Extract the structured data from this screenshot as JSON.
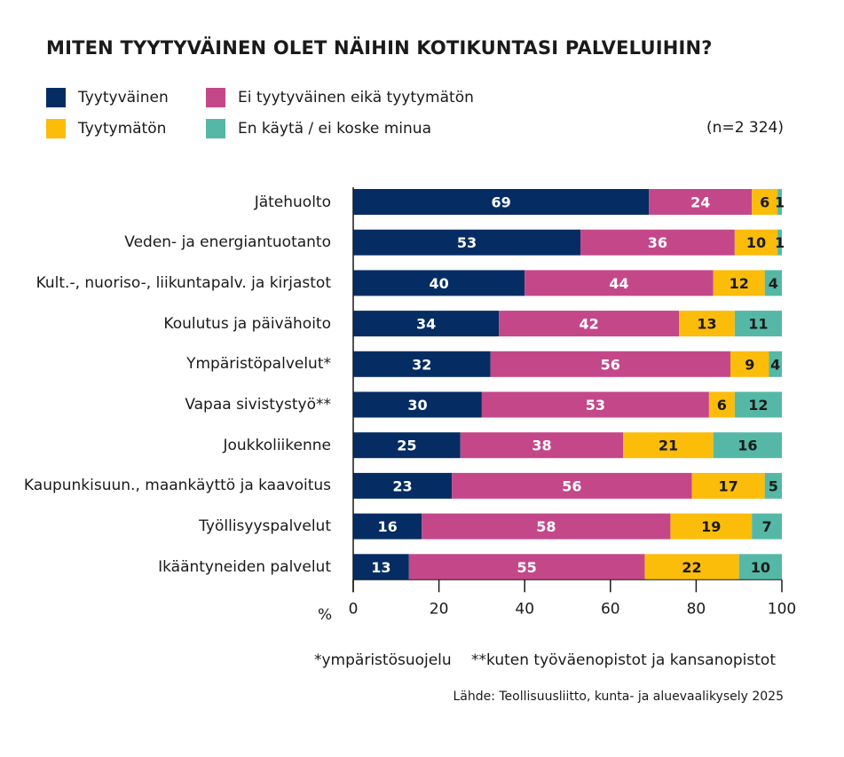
{
  "chart_data": {
    "type": "bar",
    "orientation": "horizontal",
    "stacked": true,
    "title": "MITEN TYYTYVÄINEN OLET NÄIHIN KOTIKUNTASI PALVELUIHIN?",
    "sample_note": "(n=2 324)",
    "x_unit_label": "%",
    "xlim": [
      0,
      100
    ],
    "xticks": [
      "0",
      "20",
      "40",
      "60",
      "80",
      "100"
    ],
    "legend_position": "top",
    "categories": [
      "Jätehuolto",
      "Veden- ja energiantuotanto",
      "Kult.-, nuoriso-, liikuntapalv. ja kirjastot",
      "Koulutus ja päivähoito",
      "Ympäristöpalvelut*",
      "Vapaa sivistystyö**",
      "Joukkoliikenne",
      "Kaupunkisuun., maankäyttö ja kaavoitus",
      "Työllisyyspalvelut",
      "Ikääntyneiden palvelut"
    ],
    "series": [
      {
        "name": "Tyytyväinen",
        "color": "#052d63",
        "label_color": "#ffffff",
        "values": [
          69,
          53,
          40,
          34,
          32,
          30,
          25,
          23,
          16,
          13
        ]
      },
      {
        "name": "Ei tyytyväinen eikä tyytymätön",
        "color": "#c4478a",
        "label_color": "#ffffff",
        "values": [
          24,
          36,
          44,
          42,
          56,
          53,
          38,
          56,
          58,
          55
        ]
      },
      {
        "name": "Tyytymätön",
        "color": "#fbbc0a",
        "label_color": "#1a1a1a",
        "values": [
          6,
          10,
          12,
          13,
          9,
          6,
          21,
          17,
          19,
          22
        ]
      },
      {
        "name": "En käytä / ei koske minua",
        "color": "#55b8a6",
        "label_color": "#1a1a1a",
        "values": [
          1,
          1,
          4,
          11,
          4,
          12,
          16,
          5,
          7,
          10
        ]
      }
    ],
    "footnotes": [
      "*ympäristösuojelu",
      "**kuten työväenopistot ja kansanopistot"
    ],
    "source": "Lähde: Teollisuusliitto, kunta- ja aluevaalikysely 2025"
  }
}
